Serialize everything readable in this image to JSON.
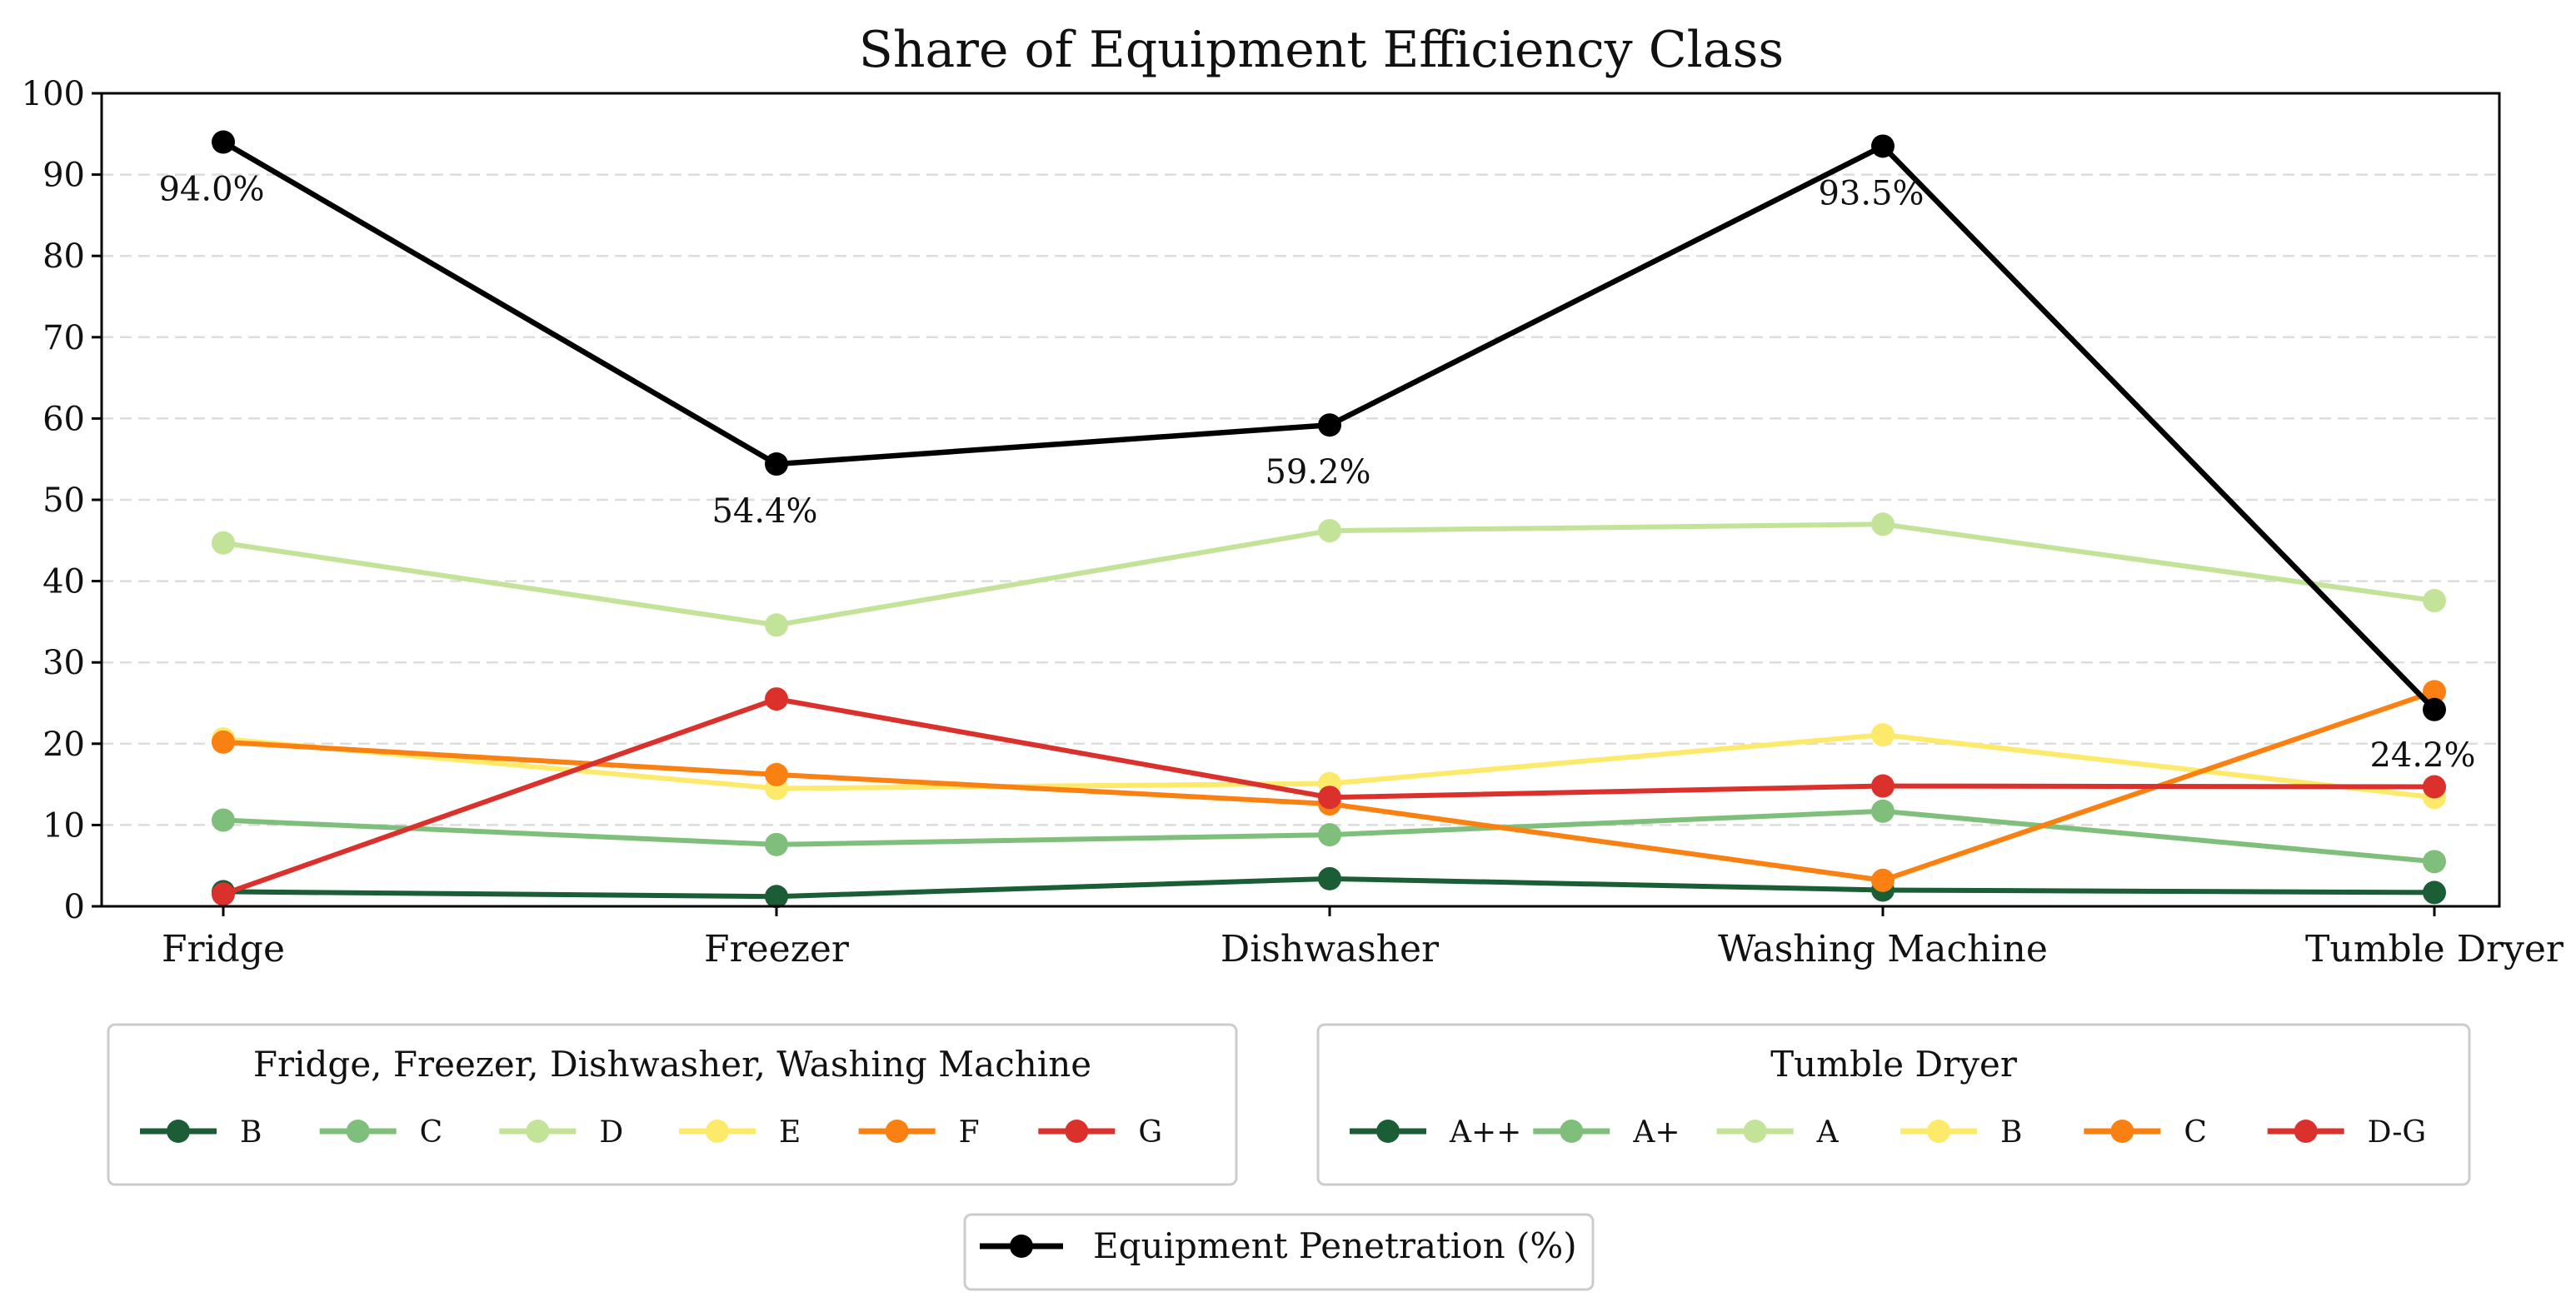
{
  "chart_data": {
    "type": "line",
    "title": "Share of Equipment Efficiency Class",
    "categories": [
      "Fridge",
      "Freezer",
      "Dishwasher",
      "Washing Machine",
      "Tumble Dryer"
    ],
    "ylim": [
      0,
      100
    ],
    "yticks": [
      0,
      10,
      20,
      30,
      40,
      50,
      60,
      70,
      80,
      90,
      100
    ],
    "grid": "horizontal-dashed",
    "series": [
      {
        "name": "B",
        "td_name": "A++",
        "color": "#1b5e36",
        "values": [
          1.8,
          1.2,
          3.4,
          2.0,
          1.7
        ]
      },
      {
        "name": "C",
        "td_name": "A+",
        "color": "#7fbf7b",
        "values": [
          10.6,
          7.6,
          8.8,
          11.7,
          5.5
        ]
      },
      {
        "name": "D",
        "td_name": "A",
        "color": "#c3e398",
        "values": [
          44.7,
          34.6,
          46.2,
          47.0,
          37.6
        ]
      },
      {
        "name": "E",
        "td_name": "B",
        "color": "#fde96a",
        "values": [
          20.6,
          14.5,
          15.1,
          21.1,
          13.4
        ]
      },
      {
        "name": "F",
        "td_name": "C",
        "color": "#f98011",
        "values": [
          20.2,
          16.2,
          12.6,
          3.2,
          26.4
        ]
      },
      {
        "name": "G",
        "td_name": "D-G",
        "color": "#db312d",
        "values": [
          1.5,
          25.5,
          13.4,
          14.8,
          14.7
        ]
      }
    ],
    "penetration": {
      "name": "Equipment Penetration (%)",
      "color": "#000000",
      "values": [
        94.0,
        54.4,
        59.2,
        93.5,
        24.2
      ],
      "labels": [
        "94.0%",
        "54.4%",
        "59.2%",
        "93.5%",
        "24.2%"
      ]
    },
    "legends": [
      {
        "title": "Fridge, Freezer, Dishwasher, Washing Machine",
        "labels": [
          "B",
          "C",
          "D",
          "E",
          "F",
          "G"
        ]
      },
      {
        "title": "Tumble Dryer",
        "labels": [
          "A++",
          "A+",
          "A",
          "B",
          "C",
          "D-G"
        ]
      }
    ]
  }
}
